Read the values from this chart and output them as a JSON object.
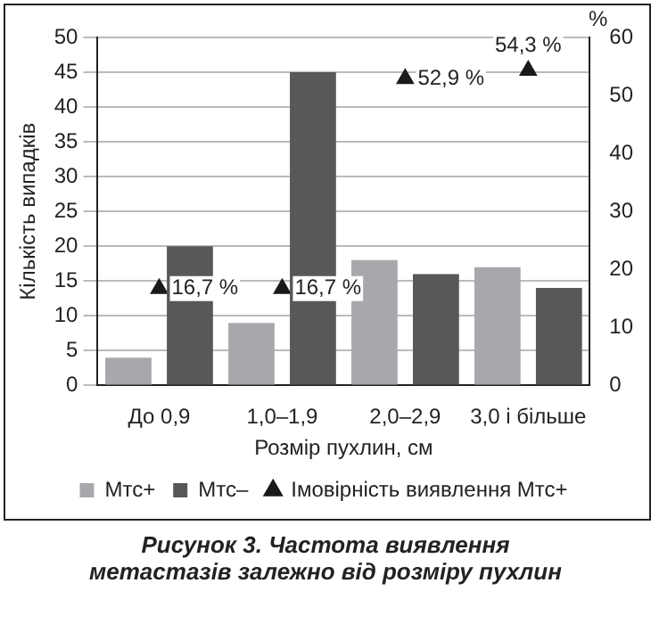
{
  "chart_data": {
    "type": "bar",
    "title": "Рисунок 3.  Частота виявлення метастазів залежно від розміру пухлин",
    "xlabel": "Розмір пухлин, см",
    "ylabel": "Кількість випадків",
    "y2label": "%",
    "categories": [
      "До 0,9",
      "1,0–1,9",
      "2,0–2,9",
      "3,0 і більше"
    ],
    "series": [
      {
        "name": "Мтс+",
        "color": "#a7a8ab",
        "values": [
          4,
          9,
          18,
          17
        ]
      },
      {
        "name": "Мтс–",
        "color": "#58585a",
        "values": [
          20,
          45,
          16,
          14
        ]
      },
      {
        "name": "Імовірність виявлення Мтс+",
        "type": "scatter",
        "axis": "y2",
        "color": "#1a1a1a",
        "values": [
          16.7,
          16.7,
          52.9,
          54.3
        ],
        "value_labels": [
          "16,7 %",
          "16,7 %",
          "52,9 %",
          "54,3 %"
        ]
      }
    ],
    "ylim": [
      0,
      50
    ],
    "yticks": [
      0,
      5,
      10,
      15,
      20,
      25,
      30,
      35,
      40,
      45,
      50
    ],
    "y2lim": [
      0,
      60
    ],
    "y2ticks": [
      0,
      10,
      20,
      30,
      40,
      50,
      60
    ],
    "grid": "y",
    "legend": "bottom",
    "marker": "triangle"
  }
}
